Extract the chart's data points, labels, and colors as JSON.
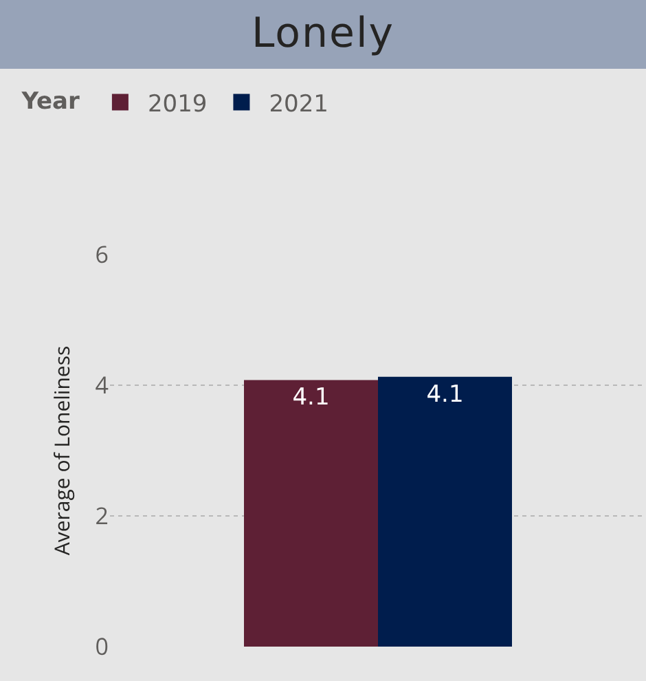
{
  "chart_data": {
    "type": "bar",
    "title": "Lonely",
    "ylabel": "Average of Loneliness",
    "legend_title": "Year",
    "categories": [
      null
    ],
    "series": [
      {
        "name": "2019",
        "color": "#5e2035",
        "values": [
          4.08
        ],
        "value_labels": [
          "4.1"
        ]
      },
      {
        "name": "2021",
        "color": "#001d4d",
        "values": [
          4.13
        ],
        "value_labels": [
          "4.1"
        ]
      }
    ],
    "ylim": [
      0,
      6
    ],
    "yticks": [
      0,
      2,
      4,
      6
    ],
    "grid": "y",
    "legend": "top left",
    "tick_labels": "y"
  }
}
